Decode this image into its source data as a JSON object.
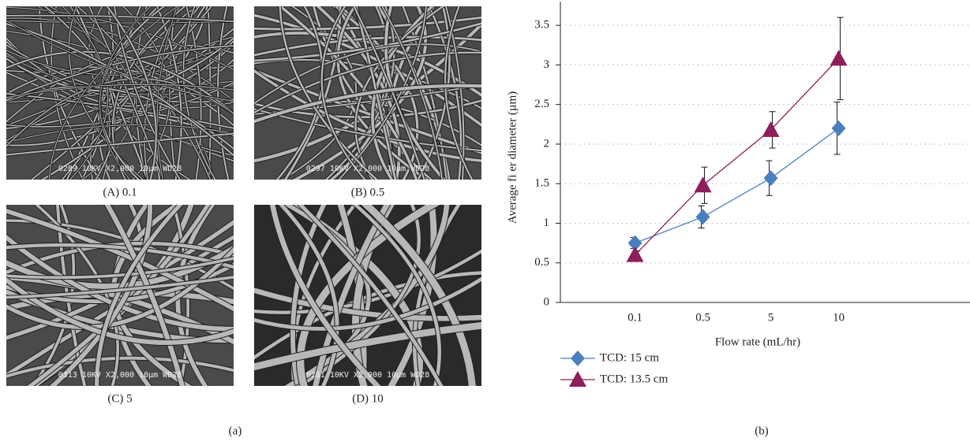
{
  "images": [
    {
      "caption": "(A) 0.1",
      "scale_text": "0289  10KV  X2,000  10µm WD28"
    },
    {
      "caption": "(B) 0.5",
      "scale_text": "0297  10KV  X2,000  10µm WD28"
    },
    {
      "caption": "(C) 5",
      "scale_text": "0313  10KV  X2,000  10µm WD28"
    },
    {
      "caption": "(D) 10",
      "scale_text": "0281  10KV  X2,000  10µm WD28"
    }
  ],
  "panel_a_label": "(a)",
  "panel_b_label": "(b)",
  "chart_data": {
    "type": "line",
    "x_label": "Flow rate (mL/hr)",
    "y_label": "Average fi  er diameter (µm)",
    "categories": [
      "0.1",
      "0.5",
      "5",
      "10"
    ],
    "series": [
      {
        "name": "TCD: 15 cm",
        "color": "#4a7fbf",
        "marker": "diamond",
        "values": [
          0.75,
          1.08,
          1.57,
          2.2
        ],
        "errors": [
          0.07,
          0.14,
          0.22,
          0.33
        ]
      },
      {
        "name": "TCD: 13.5 cm",
        "color": "#8e1f5a",
        "marker": "triangle",
        "values": [
          0.6,
          1.48,
          2.18,
          3.08
        ],
        "errors": [
          0.05,
          0.23,
          0.23,
          0.52
        ]
      }
    ],
    "ylim": [
      0,
      3.8
    ],
    "yticks": [
      0,
      0.5,
      1,
      1.5,
      2,
      2.5,
      3,
      3.5
    ],
    "grid": true,
    "legend": "bottom-left"
  }
}
